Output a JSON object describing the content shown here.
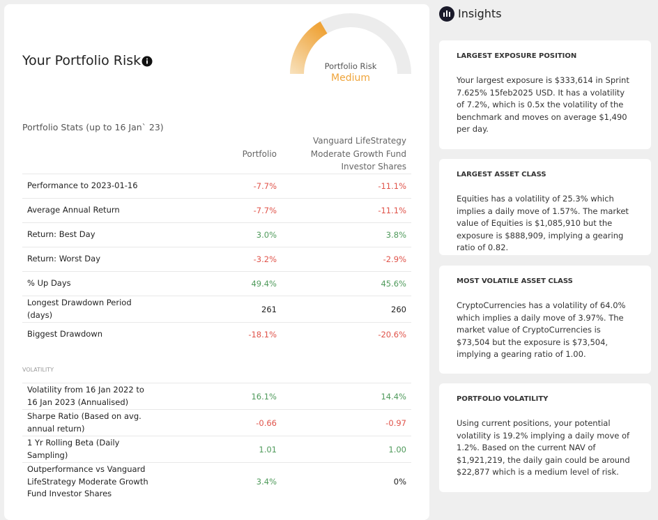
{
  "header": {
    "title": "Your Portfolio Risk",
    "gauge_label": "Portfolio Risk",
    "gauge_value": "Medium"
  },
  "stats": {
    "title": "Portfolio Stats (up to 16 Jan` 23)",
    "columns": [
      "Portfolio",
      "Vanguard LifeStrategy Moderate Growth Fund Investor Shares"
    ],
    "rows": [
      {
        "label": "Performance to 2023-01-16",
        "values": [
          "-7.7%",
          "-11.1%"
        ],
        "colors": [
          "#e0534a",
          "#e0534a"
        ]
      },
      {
        "label": "Average Annual Return",
        "values": [
          "-7.7%",
          "-11.1%"
        ],
        "colors": [
          "#e0534a",
          "#e0534a"
        ]
      },
      {
        "label": "Return: Best Day",
        "values": [
          "3.0%",
          "3.8%"
        ],
        "colors": [
          "#4f9a5b",
          "#4f9a5b"
        ]
      },
      {
        "label": "Return: Worst Day",
        "values": [
          "-3.2%",
          "-2.9%"
        ],
        "colors": [
          "#e0534a",
          "#e0534a"
        ]
      },
      {
        "label": "% Up Days",
        "values": [
          "49.4%",
          "45.6%"
        ],
        "colors": [
          "#4f9a5b",
          "#4f9a5b"
        ]
      },
      {
        "label": "Longest Drawdown Period (days)",
        "values": [
          "261",
          "260"
        ],
        "colors": [
          "#222222",
          "#222222"
        ]
      },
      {
        "label": "Biggest Drawdown",
        "values": [
          "-18.1%",
          "-20.6%"
        ],
        "colors": [
          "#e0534a",
          "#e0534a"
        ]
      }
    ]
  },
  "volatility": {
    "title": "VOLATILITY",
    "rows": [
      {
        "label": "Volatility from 16 Jan 2022 to 16 Jan 2023 (Annualised)",
        "values": [
          "16.1%",
          "14.4%"
        ],
        "colors": [
          "#4f9a5b",
          "#4f9a5b"
        ]
      },
      {
        "label": "Sharpe Ratio (Based on avg. annual return)",
        "values": [
          "-0.66",
          "-0.97"
        ],
        "colors": [
          "#e0534a",
          "#e0534a"
        ]
      },
      {
        "label": "1 Yr Rolling Beta (Daily Sampling)",
        "values": [
          "1.01",
          "1.00"
        ],
        "colors": [
          "#4f9a5b",
          "#4f9a5b"
        ]
      },
      {
        "label": "Outperformance vs Vanguard LifeStrategy Moderate Growth Fund Investor Shares",
        "values": [
          "3.4%",
          "0%"
        ],
        "colors": [
          "#4f9a5b",
          "#222222"
        ]
      }
    ]
  },
  "insights": {
    "title": "Insights",
    "cards": [
      {
        "title": "LARGEST EXPOSURE POSITION",
        "text": "Your largest exposure is $333,614 in Sprint 7.625% 15feb2025 USD. It has a volatility of 7.2%, which is 0.5x the volatility of the benchmark and moves on average $1,490 per day."
      },
      {
        "title": "LARGEST ASSET CLASS",
        "text": "Equities has a volatility of 25.3% which implies a daily move of 1.57%. The market value of Equities is $1,085,910 but the exposure is $888,909, implying a gearing ratio of 0.82."
      },
      {
        "title": "MOST VOLATILE ASSET CLASS",
        "text": "CryptoCurrencies has a volatility of 64.0% which implies a daily move of 3.97%. The market value of CryptoCurrencies is $73,504 but the exposure is $73,504, implying a gearing ratio of 1.00."
      },
      {
        "title": "PORTFOLIO VOLATILITY",
        "text": "Using current positions, your potential volatility is 19.2% implying a daily move of 1.2%. Based on the current NAV of $1,921,219, the daily gain could be around $22,877 which is a medium level of risk."
      }
    ]
  }
}
